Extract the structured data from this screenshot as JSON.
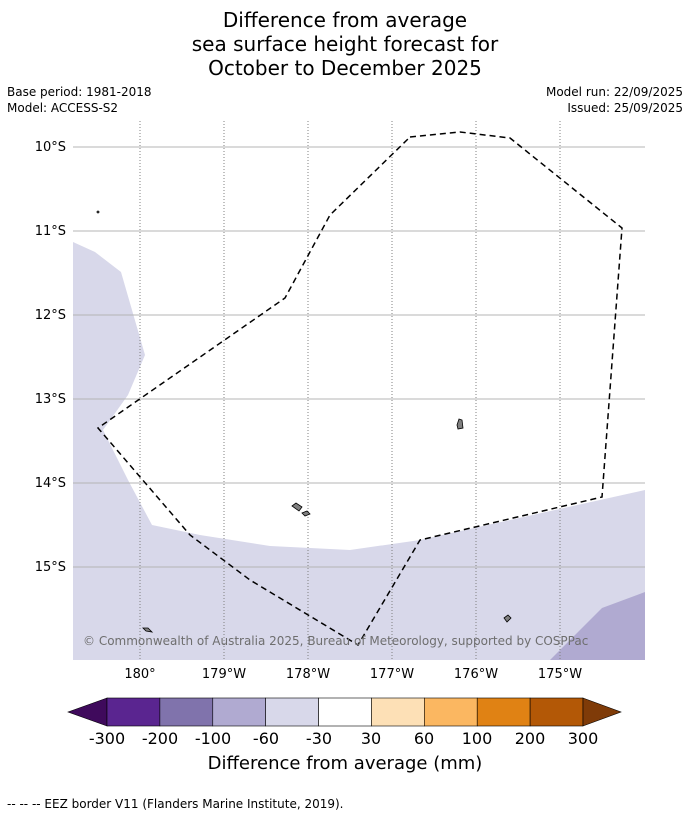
{
  "title": {
    "line1": "Difference from average",
    "line2": "sea surface height forecast for",
    "line3": "October to December 2025"
  },
  "meta": {
    "base_period": "Base period: 1981-2018",
    "model": "Model: ACCESS-S2",
    "model_run": "Model run: 22/09/2025",
    "issued": "Issued: 25/09/2025"
  },
  "map": {
    "lat_labels": [
      "10°S",
      "11°S",
      "12°S",
      "13°S",
      "14°S",
      "15°S"
    ],
    "lon_labels": [
      "180°",
      "179°W",
      "178°W",
      "177°W",
      "176°W",
      "175°W"
    ],
    "copyright": "© Commonwealth of Australia 2025, Bureau of Meteorology, supported by COSPPac",
    "colors": {
      "land": "#808080",
      "band_minus60_minus30": "#d8d8ea",
      "band_minus100_minus60": "#b0aad1",
      "eez_line": "#000000"
    }
  },
  "colorbar": {
    "ticks": [
      "-300",
      "-200",
      "-100",
      "-60",
      "-30",
      "30",
      "60",
      "100",
      "200",
      "300"
    ],
    "colors": [
      "#3f0a5c",
      "#5a2590",
      "#8073ac",
      "#b0aad1",
      "#d8d8ea",
      "#ffffff",
      "#fde0b6",
      "#fbb761",
      "#e08214",
      "#b35806",
      "#7f3b08"
    ],
    "label": "Difference from average (mm)"
  },
  "footnote": "--  --  -- EEZ border V11 (Flanders Marine Institute, 2019)."
}
